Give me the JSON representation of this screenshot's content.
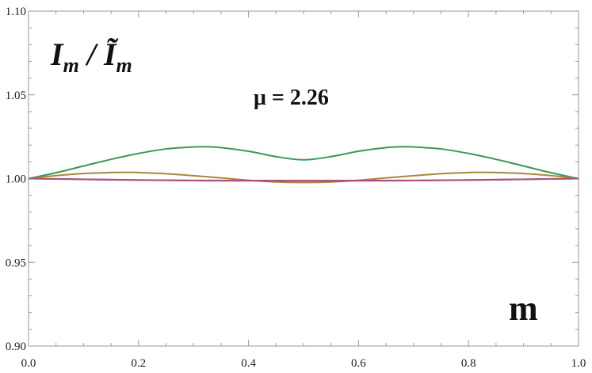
{
  "chart_data": {
    "type": "line",
    "xlim": [
      0.0,
      1.0
    ],
    "ylim": [
      0.9,
      1.1
    ],
    "x_ticks": [
      "0.0",
      "0.2",
      "0.4",
      "0.6",
      "0.8",
      "1.0"
    ],
    "y_ticks": [
      "0.90",
      "0.95",
      "1.00",
      "1.05",
      "1.10"
    ],
    "ylabel": "I_m / Ĩ_m",
    "ylabel_parts": {
      "main": "I",
      "sub": "m",
      "sep": " / ",
      "main2": "Ĩ",
      "sub2": "m"
    },
    "xlabel": "m",
    "annotation": "μ = 2.26",
    "series": [
      {
        "color": "#3a9a55",
        "x": [
          0.0,
          0.05,
          0.1,
          0.15,
          0.2,
          0.25,
          0.3,
          0.32,
          0.35,
          0.4,
          0.45,
          0.5,
          0.55,
          0.6,
          0.65,
          0.68,
          0.7,
          0.75,
          0.8,
          0.85,
          0.9,
          0.95,
          1.0
        ],
        "y": [
          1.0,
          1.0035,
          1.0075,
          1.0115,
          1.015,
          1.0177,
          1.0189,
          1.019,
          1.0185,
          1.0163,
          1.0131,
          1.0112,
          1.0131,
          1.0163,
          1.0185,
          1.019,
          1.0189,
          1.0177,
          1.015,
          1.0115,
          1.0075,
          1.0035,
          1.0
        ]
      },
      {
        "color": "#a8893a",
        "x": [
          0.0,
          0.05,
          0.1,
          0.15,
          0.18,
          0.2,
          0.25,
          0.3,
          0.35,
          0.4,
          0.45,
          0.5,
          0.55,
          0.6,
          0.65,
          0.7,
          0.75,
          0.8,
          0.82,
          0.85,
          0.9,
          0.95,
          1.0
        ],
        "y": [
          1.0,
          1.0018,
          1.003,
          1.0036,
          1.0037,
          1.0036,
          1.0029,
          1.0017,
          1.0004,
          0.999,
          0.998,
          0.9977,
          0.998,
          0.999,
          1.0004,
          1.0017,
          1.0029,
          1.0036,
          1.0037,
          1.0036,
          1.003,
          1.0018,
          1.0
        ]
      },
      {
        "color": "#8a3a8a",
        "x": [
          0.0,
          0.1,
          0.2,
          0.3,
          0.4,
          0.5,
          0.6,
          0.7,
          0.8,
          0.9,
          1.0
        ],
        "y": [
          1.0,
          0.9995,
          0.9991,
          0.9988,
          0.9987,
          0.9987,
          0.9987,
          0.9988,
          0.9991,
          0.9995,
          1.0
        ]
      },
      {
        "color": "#b05080",
        "x": [
          0.0,
          0.1,
          0.2,
          0.3,
          0.4,
          0.5,
          0.6,
          0.7,
          0.8,
          0.9,
          1.0
        ],
        "y": [
          1.0,
          0.9996,
          0.9992,
          0.9989,
          0.9988,
          0.9988,
          0.9988,
          0.9989,
          0.9992,
          0.9996,
          1.0
        ]
      }
    ]
  }
}
